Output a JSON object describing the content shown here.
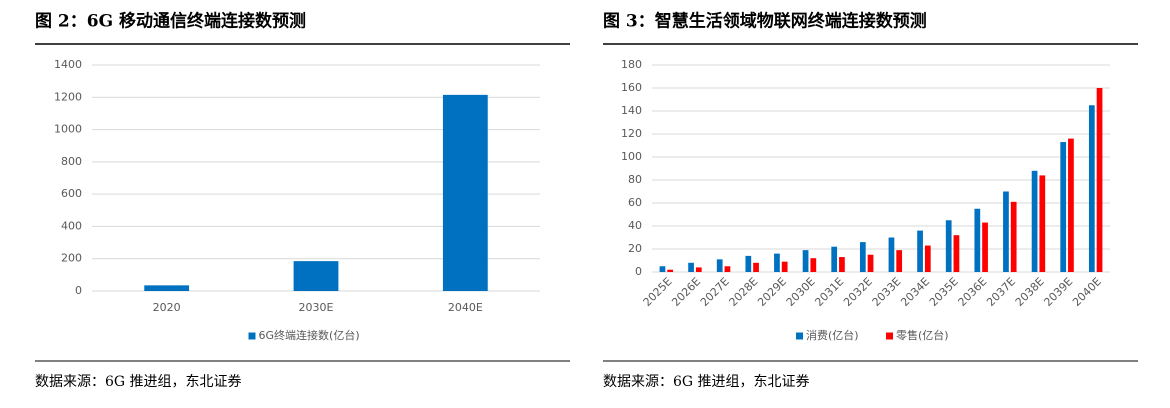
{
  "chart_data": [
    {
      "type": "bar",
      "title": "图 2：6G 移动通信终端连接数预测",
      "source": "数据来源：6G 推进组，东北证券",
      "categories": [
        "2020",
        "2030E",
        "2040E"
      ],
      "series": [
        {
          "name": "6G终端连接数(亿台)",
          "color": "#0070c0",
          "values": [
            35,
            185,
            1215
          ]
        }
      ],
      "ylim": [
        0,
        1400
      ],
      "yticks": [
        0,
        200,
        400,
        600,
        800,
        1000,
        1200,
        1400
      ],
      "grid": true,
      "legend": "bottom"
    },
    {
      "type": "bar",
      "title": "图 3：智慧生活领域物联网终端连接数预测",
      "source": "数据来源：6G 推进组，东北证券",
      "categories": [
        "2025E",
        "2026E",
        "2027E",
        "2028E",
        "2029E",
        "2030E",
        "2031E",
        "2032E",
        "2033E",
        "2034E",
        "2035E",
        "2036E",
        "2037E",
        "2038E",
        "2039E",
        "2040E"
      ],
      "series": [
        {
          "name": "消费(亿台)",
          "color": "#0070c0",
          "values": [
            5,
            8,
            11,
            14,
            16,
            19,
            22,
            26,
            30,
            36,
            45,
            55,
            70,
            88,
            113,
            145
          ]
        },
        {
          "name": "零售(亿台)",
          "color": "#ff0000",
          "values": [
            2,
            4,
            5,
            8,
            9,
            12,
            13,
            15,
            19,
            23,
            32,
            43,
            61,
            84,
            116,
            160
          ]
        }
      ],
      "ylim": [
        0,
        180
      ],
      "yticks": [
        0,
        20,
        40,
        60,
        80,
        100,
        120,
        140,
        160,
        180
      ],
      "grid": true,
      "legend": "bottom",
      "rotate_labels": true
    }
  ]
}
